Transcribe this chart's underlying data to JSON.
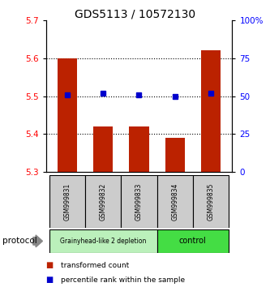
{
  "title": "GDS5113 / 10572130",
  "samples": [
    "GSM999831",
    "GSM999832",
    "GSM999833",
    "GSM999834",
    "GSM999835"
  ],
  "bar_values": [
    5.6,
    5.42,
    5.42,
    5.39,
    5.62
  ],
  "percentile_values": [
    51,
    52,
    51,
    50,
    52
  ],
  "bar_bottom": 5.3,
  "ylim_left": [
    5.3,
    5.7
  ],
  "ylim_right": [
    0,
    100
  ],
  "yticks_left": [
    5.3,
    5.4,
    5.5,
    5.6,
    5.7
  ],
  "yticks_right": [
    0,
    25,
    50,
    75,
    100
  ],
  "bar_color": "#bb2200",
  "blue_color": "#0000cc",
  "groups": [
    {
      "label": "Grainyhead-like 2 depletion",
      "n": 3,
      "color": "#bbf0bb"
    },
    {
      "label": "control",
      "n": 2,
      "color": "#44dd44"
    }
  ],
  "protocol_label": "protocol",
  "legend": [
    {
      "label": "transformed count",
      "color": "#bb2200"
    },
    {
      "label": "percentile rank within the sample",
      "color": "#0000cc"
    }
  ],
  "sample_box_color": "#cccccc",
  "grid_yticks": [
    5.4,
    5.5,
    5.6
  ]
}
